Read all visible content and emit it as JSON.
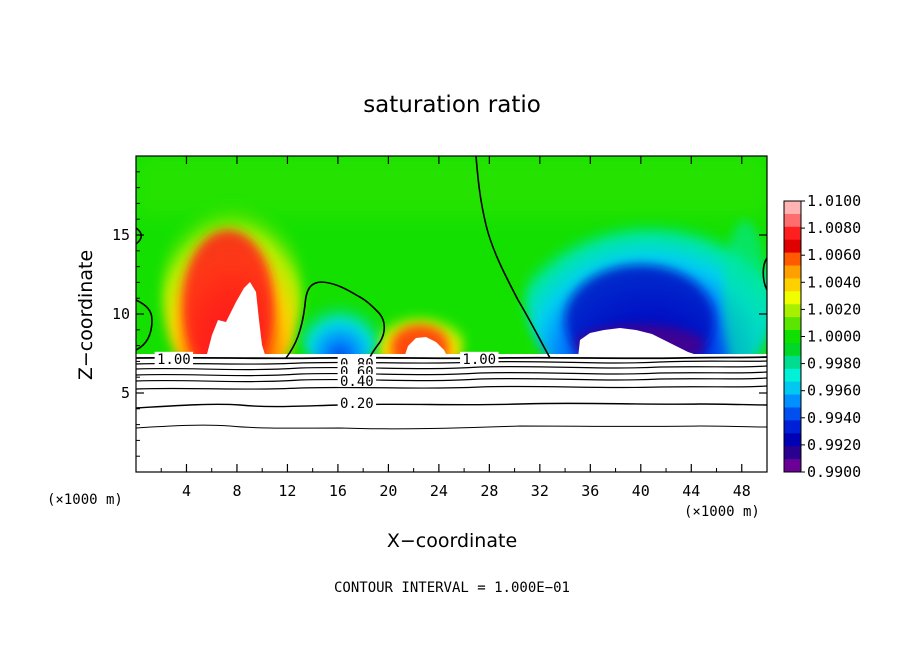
{
  "chart_data": {
    "type": "heatmap",
    "title": "saturation ratio",
    "xlabel": "X−coordinate",
    "ylabel": "Z−coordinate",
    "x_unit": "(×1000 m)",
    "y_unit": "(×1000 m)",
    "xlim": [
      0,
      50
    ],
    "ylim": [
      0,
      20
    ],
    "x_ticks": [
      4,
      8,
      12,
      16,
      20,
      24,
      28,
      32,
      36,
      40,
      44,
      48
    ],
    "y_ticks": [
      5,
      10,
      15
    ],
    "colorbar": {
      "levels": [
        "1.0100",
        "1.0080",
        "1.0060",
        "1.0040",
        "1.0020",
        "1.0000",
        "0.9980",
        "0.9960",
        "0.9940",
        "0.9920",
        "0.9900"
      ],
      "colors": [
        "#ffb4b4",
        "#ff6e6e",
        "#ff1f1f",
        "#e10000",
        "#ff5a00",
        "#ffa000",
        "#ffd000",
        "#f0ff00",
        "#a8f000",
        "#5ae600",
        "#10e000",
        "#00d828",
        "#00dc90",
        "#00f0d8",
        "#00c8f0",
        "#0090ff",
        "#0050f0",
        "#0020d8",
        "#0000b4",
        "#2a0090",
        "#6a0096"
      ]
    },
    "contour_labels": [
      {
        "text": "1.00",
        "x": 3.0,
        "z": 7.1
      },
      {
        "text": "1.00",
        "x": 27.2,
        "z": 7.1
      },
      {
        "text": "0.80",
        "x": 17.5,
        "z": 6.8
      },
      {
        "text": "0.60",
        "x": 17.5,
        "z": 6.3
      },
      {
        "text": "0.40",
        "x": 17.5,
        "z": 5.7
      },
      {
        "text": "0.20",
        "x": 17.5,
        "z": 4.3
      }
    ],
    "lower_contours_z": [
      7.1,
      6.8,
      6.5,
      6.2,
      5.9,
      5.4,
      4.4,
      2.9
    ],
    "annotation": "CONTOUR INTERVAL = 1.000E−01"
  }
}
